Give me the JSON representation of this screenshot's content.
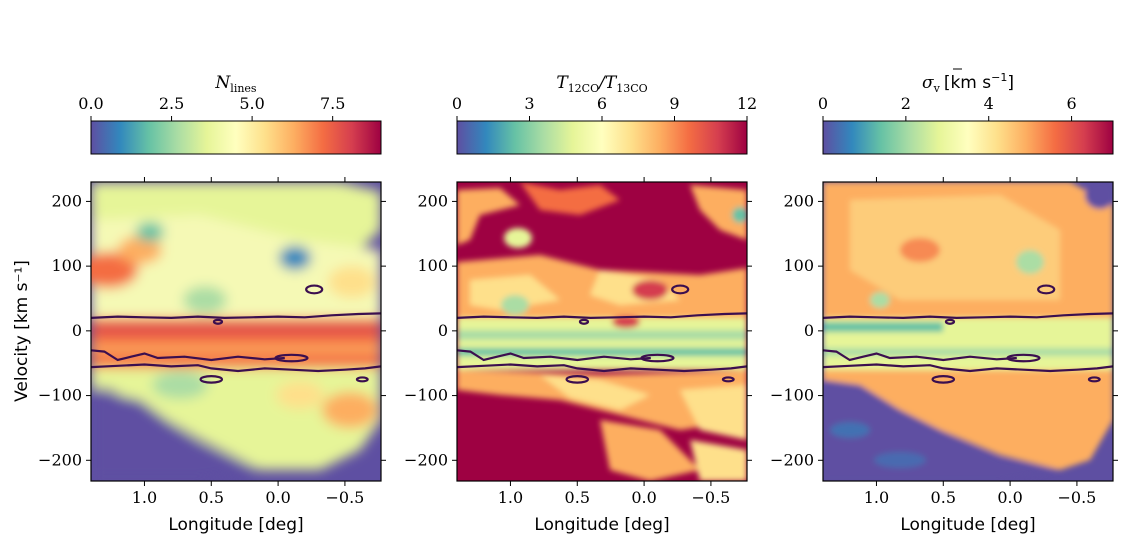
{
  "chart_data": [
    {
      "type": "heatmap",
      "panel": "left",
      "colorbar": {
        "label": "N_lines",
        "label_main": "N",
        "label_sub": "lines",
        "range": [
          0,
          9
        ],
        "ticks": [
          0.0,
          2.5,
          5.0,
          7.5
        ],
        "tick_labels": [
          "0.0",
          "2.5",
          "5.0",
          "7.5"
        ],
        "colormap": "Spectral_r"
      },
      "xlabel": "Longitude [deg]",
      "ylabel": "Velocity [km s⁻¹]",
      "xlim": [
        1.4,
        -0.77
      ],
      "ylim": [
        -232,
        230
      ],
      "xticks": [
        1.0,
        0.5,
        0.0,
        -0.5
      ],
      "xtick_labels": [
        "1.0",
        "0.5",
        "0.0",
        "−0.5"
      ],
      "yticks": [
        200,
        100,
        0,
        -100,
        -200
      ],
      "ytick_labels": [
        "200",
        "100",
        "0",
        "−100",
        "−200"
      ]
    },
    {
      "type": "heatmap",
      "panel": "middle",
      "colorbar": {
        "label": "T12CO/T13CO",
        "label_num_main": "T",
        "label_num_sub": "12CO",
        "label_den_main": "T",
        "label_den_sub": "13CO",
        "range": [
          0,
          12
        ],
        "ticks": [
          0,
          3,
          6,
          9,
          12
        ],
        "tick_labels": [
          "0",
          "3",
          "6",
          "9",
          "12"
        ],
        "colormap": "Spectral_r"
      },
      "xlabel": "Longitude [deg]",
      "xlim": [
        1.4,
        -0.77
      ],
      "ylim": [
        -232,
        230
      ],
      "xticks": [
        1.0,
        0.5,
        0.0,
        -0.5
      ],
      "xtick_labels": [
        "1.0",
        "0.5",
        "0.0",
        "−0.5"
      ],
      "yticks": [
        200,
        100,
        0,
        -100,
        -200
      ],
      "ytick_labels": [
        "200",
        "100",
        "0",
        "−100",
        "−200"
      ]
    },
    {
      "type": "heatmap",
      "panel": "right",
      "colorbar": {
        "label": "σv [km s⁻¹]",
        "label_main": "σ",
        "label_sub": "v",
        "label_units": "[km s",
        "label_exp": "−1",
        "label_close": "]",
        "range": [
          0,
          7
        ],
        "ticks": [
          0,
          2,
          4,
          6
        ],
        "tick_labels": [
          "0",
          "2",
          "4",
          "6"
        ],
        "colormap": "Spectral_r"
      },
      "xlabel": "Longitude [deg]",
      "xlim": [
        1.4,
        -0.77
      ],
      "ylim": [
        -232,
        230
      ],
      "xticks": [
        1.0,
        0.5,
        0.0,
        -0.5
      ],
      "xtick_labels": [
        "1.0",
        "0.5",
        "0.0",
        "−0.5"
      ],
      "yticks": [
        200,
        100,
        0,
        -100,
        -200
      ],
      "ytick_labels": [
        "200",
        "100",
        "0",
        "−100",
        "−200"
      ]
    }
  ],
  "contours": {
    "color": "#3b0f4f",
    "upper_line": [
      [
        1.4,
        20
      ],
      [
        1.2,
        22
      ],
      [
        1.0,
        21
      ],
      [
        0.8,
        20
      ],
      [
        0.6,
        22
      ],
      [
        0.4,
        20
      ],
      [
        0.2,
        21
      ],
      [
        0.0,
        22
      ],
      [
        -0.2,
        21
      ],
      [
        -0.4,
        24
      ],
      [
        -0.6,
        26
      ],
      [
        -0.77,
        27
      ]
    ],
    "lower_line": [
      [
        1.4,
        -56
      ],
      [
        1.2,
        -54
      ],
      [
        1.0,
        -52
      ],
      [
        0.8,
        -55
      ],
      [
        0.6,
        -53
      ],
      [
        0.5,
        -58
      ],
      [
        0.3,
        -62
      ],
      [
        0.1,
        -58
      ],
      [
        -0.1,
        -60
      ],
      [
        -0.3,
        -62
      ],
      [
        -0.5,
        -60
      ],
      [
        -0.65,
        -58
      ],
      [
        -0.77,
        -55
      ]
    ],
    "inner_line": [
      [
        1.4,
        -30
      ],
      [
        1.3,
        -32
      ],
      [
        1.2,
        -45
      ],
      [
        1.1,
        -40
      ],
      [
        1.0,
        -35
      ],
      [
        0.9,
        -42
      ],
      [
        0.7,
        -40
      ],
      [
        0.5,
        -45
      ],
      [
        0.3,
        -40
      ],
      [
        0.1,
        -44
      ],
      [
        -0.05,
        -42
      ]
    ],
    "islands": [
      {
        "x": 0.5,
        "y": -75,
        "rx": 0.08,
        "ry": 5
      },
      {
        "x": -0.27,
        "y": 64,
        "rx": 0.06,
        "ry": 6
      },
      {
        "x": 0.45,
        "y": 14,
        "rx": 0.03,
        "ry": 3
      },
      {
        "x": -0.1,
        "y": -42,
        "rx": 0.12,
        "ry": 5
      },
      {
        "x": -0.63,
        "y": -75,
        "rx": 0.04,
        "ry": 3
      }
    ]
  }
}
